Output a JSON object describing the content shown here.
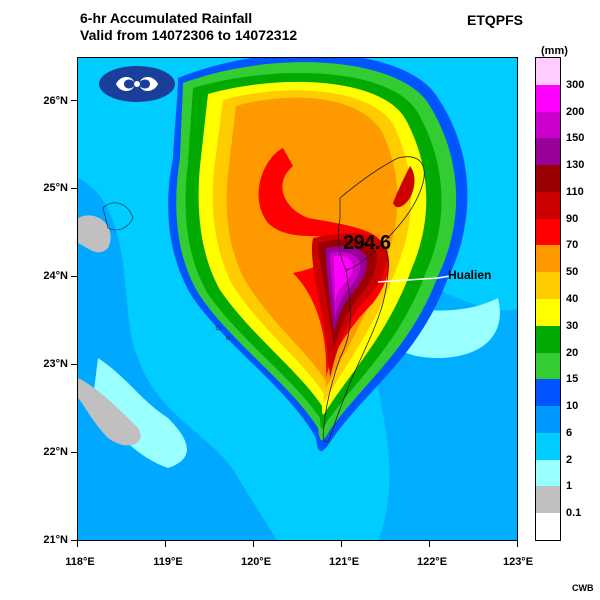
{
  "title_line1": "6-hr Accumulated Rainfall",
  "title_line2": "Valid from 14072306 to 14072312",
  "product": "ETQPFS",
  "unit": "(mm)",
  "credit": "CWB",
  "peak_value": "294.6",
  "city_label": "Hualien",
  "lat_labels": [
    "26°N",
    "25°N",
    "24°N",
    "23°N",
    "22°N",
    "21°N"
  ],
  "lon_labels": [
    "118°E",
    "119°E",
    "120°E",
    "121°E",
    "122°E",
    "123°E"
  ],
  "colorbar": {
    "labels": [
      "300",
      "200",
      "150",
      "130",
      "110",
      "90",
      "70",
      "50",
      "40",
      "30",
      "20",
      "15",
      "10",
      "6",
      "2",
      "1",
      "0.1"
    ],
    "colors": [
      "#ffccff",
      "#ff00ff",
      "#cc00cc",
      "#990099",
      "#990000",
      "#cc0000",
      "#ff0000",
      "#ff9900",
      "#ffcc00",
      "#ffff00",
      "#00aa00",
      "#33cc33",
      "#0055ff",
      "#0099ff",
      "#00ccff",
      "#99ffff",
      "#c0c0c0",
      "#ffffff"
    ]
  }
}
